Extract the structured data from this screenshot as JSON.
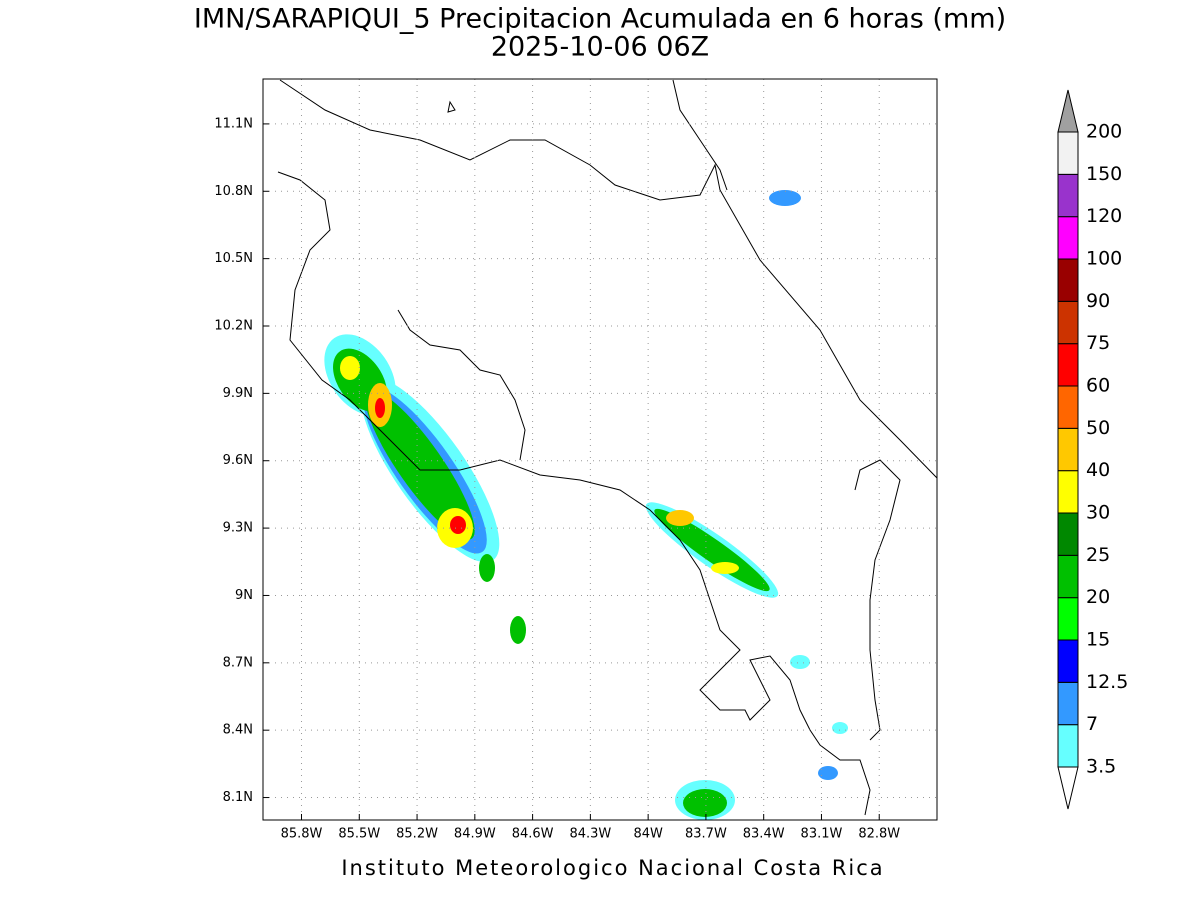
{
  "header": {
    "title": "IMN/SARAPIQUI_5 Precipitacion Acumulada en 6 horas (mm)",
    "subtitle": "2025-10-06 06Z"
  },
  "map": {
    "xlim": [
      -86.0,
      -82.5
    ],
    "ylim": [
      8.0,
      11.3
    ],
    "grid": true,
    "xticks": [
      {
        "value": -85.8,
        "label": "85.8W"
      },
      {
        "value": -85.5,
        "label": "85.5W"
      },
      {
        "value": -85.2,
        "label": "85.2W"
      },
      {
        "value": -84.9,
        "label": "84.9W"
      },
      {
        "value": -84.6,
        "label": "84.6W"
      },
      {
        "value": -84.3,
        "label": "84.3W"
      },
      {
        "value": -84.0,
        "label": "84W"
      },
      {
        "value": -83.7,
        "label": "83.7W"
      },
      {
        "value": -83.4,
        "label": "83.4W"
      },
      {
        "value": -83.1,
        "label": "83.1W"
      },
      {
        "value": -82.8,
        "label": "82.8W"
      }
    ],
    "yticks": [
      {
        "value": 11.1,
        "label": "11.1N"
      },
      {
        "value": 10.8,
        "label": "10.8N"
      },
      {
        "value": 10.5,
        "label": "10.5N"
      },
      {
        "value": 10.2,
        "label": "10.2N"
      },
      {
        "value": 9.9,
        "label": "9.9N"
      },
      {
        "value": 9.6,
        "label": "9.6N"
      },
      {
        "value": 9.3,
        "label": "9.3N"
      },
      {
        "value": 9,
        "label": "9N"
      },
      {
        "value": 8.7,
        "label": "8.7N"
      },
      {
        "value": 8.4,
        "label": "8.4N"
      },
      {
        "value": 8.1,
        "label": "8.1N"
      }
    ]
  },
  "colorbar": {
    "levels": [
      3.5,
      7,
      12.5,
      15,
      20,
      25,
      30,
      40,
      50,
      60,
      75,
      90,
      100,
      120,
      150,
      200
    ],
    "colors": [
      "#66ffff",
      "#3399ff",
      "#0000ff",
      "#00ff00",
      "#00c000",
      "#008800",
      "#ffff00",
      "#ffc800",
      "#ff6600",
      "#ff0000",
      "#cc3300",
      "#990000",
      "#ff00ff",
      "#9933cc",
      "#f2f2f2"
    ],
    "under_color": "#ffffff",
    "over_color": "#a0a0a0"
  },
  "footer": {
    "credit": "Instituto Meteorologico Nacional Costa Rica"
  }
}
